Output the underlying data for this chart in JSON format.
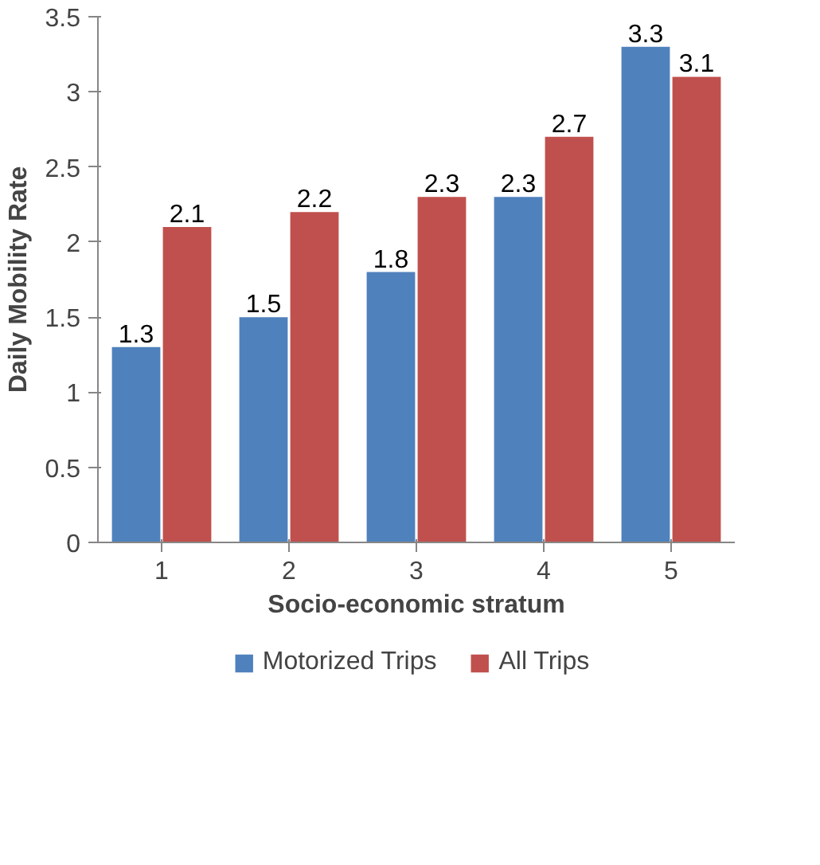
{
  "chart_data": {
    "type": "bar",
    "xlabel": "Socio-economic stratum",
    "ylabel": "Daily Mobility Rate",
    "categories": [
      "1",
      "2",
      "3",
      "4",
      "5"
    ],
    "series": [
      {
        "name": "Motorized Trips",
        "color": "#4f81bd",
        "values": [
          1.3,
          1.5,
          1.8,
          2.3,
          3.3
        ]
      },
      {
        "name": "All Trips",
        "color": "#c0504d",
        "values": [
          2.1,
          2.2,
          2.3,
          2.7,
          3.1
        ]
      }
    ],
    "ylim": [
      0,
      3.5
    ],
    "yticks": [
      0,
      0.5,
      1,
      1.5,
      2,
      2.5,
      3,
      3.5
    ],
    "grid": false,
    "legend": "bottom",
    "data_labels": true
  }
}
